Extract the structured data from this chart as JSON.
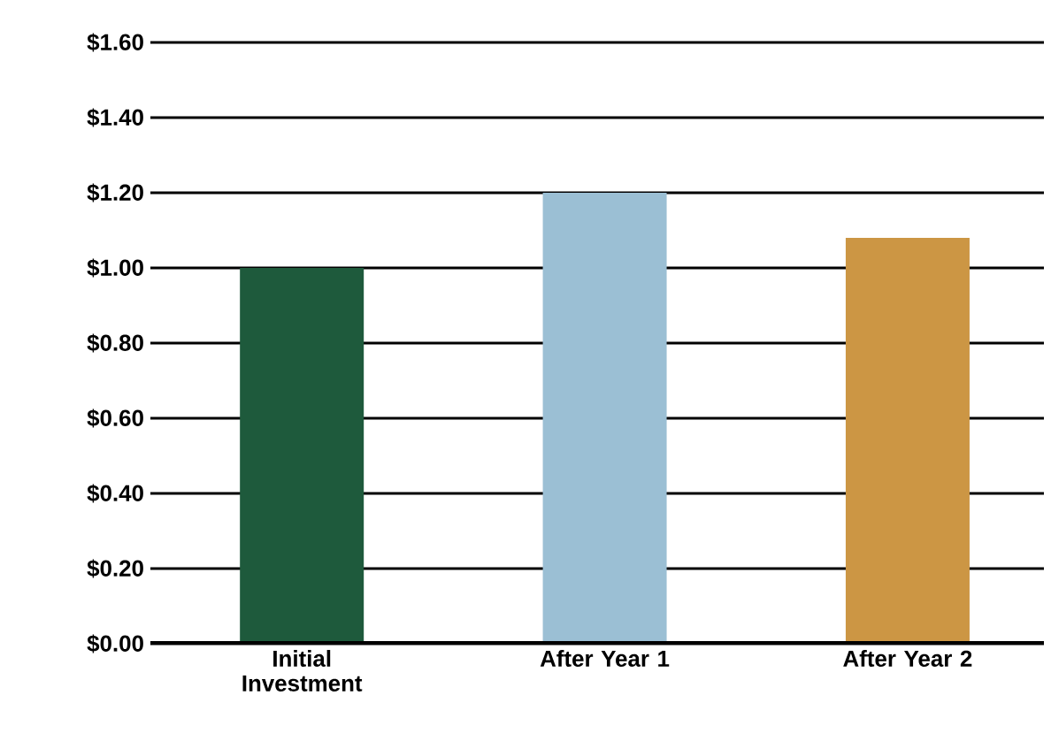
{
  "chart_data": {
    "type": "bar",
    "categories": [
      "Initial Investment",
      "After Year 1",
      "After Year 2"
    ],
    "values": [
      1.0,
      1.2,
      1.08
    ],
    "colors": [
      "#1e5a3c",
      "#9bbfd4",
      "#cc9644"
    ],
    "ylim": [
      0,
      1.6
    ],
    "yticks": [
      {
        "value": 0,
        "label": "$0.00"
      },
      {
        "value": 0.2,
        "label": "$0.20"
      },
      {
        "value": 0.4,
        "label": "$0.40"
      },
      {
        "value": 0.6,
        "label": "$0.60"
      },
      {
        "value": 0.8,
        "label": "$0.80"
      },
      {
        "value": 1.0,
        "label": "$1.00"
      },
      {
        "value": 1.2,
        "label": "$1.20"
      },
      {
        "value": 1.4,
        "label": "$1.40"
      },
      {
        "value": 1.6,
        "label": "$1.60"
      }
    ],
    "grid": "y"
  }
}
